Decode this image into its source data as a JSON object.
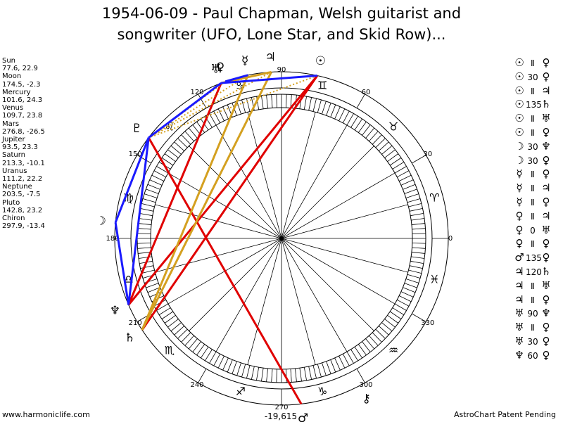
{
  "title": {
    "line1": "1954-06-09 - Paul Chapman, Welsh guitarist and",
    "line2": "songwriter (UFO, Lone Star, and Skid Row)..."
  },
  "planets": [
    {
      "name": "Sun",
      "coords": "77.6, 22.9",
      "longitude": 77.6,
      "glyph": "☉"
    },
    {
      "name": "Moon",
      "coords": "174.5, -2.3",
      "longitude": 174.5,
      "glyph": "☽"
    },
    {
      "name": "Mercury",
      "coords": "101.6, 24.3",
      "longitude": 101.6,
      "glyph": "☿"
    },
    {
      "name": "Venus",
      "coords": "109.7, 23.8",
      "longitude": 109.7,
      "glyph": "♀"
    },
    {
      "name": "Mars",
      "coords": "276.8, -26.5",
      "longitude": 276.8,
      "glyph": "♂"
    },
    {
      "name": "Jupiter",
      "coords": "93.5, 23.3",
      "longitude": 93.5,
      "glyph": "♃"
    },
    {
      "name": "Saturn",
      "coords": "213.3, -10.1",
      "longitude": 213.3,
      "glyph": "♄"
    },
    {
      "name": "Uranus",
      "coords": "111.2, 22.2",
      "longitude": 111.2,
      "glyph": "♅"
    },
    {
      "name": "Neptune",
      "coords": "203.5, -7.5",
      "longitude": 203.5,
      "glyph": "♆"
    },
    {
      "name": "Pluto",
      "coords": "142.8, 23.2",
      "longitude": 142.8,
      "glyph": "♇"
    },
    {
      "name": "Chiron",
      "coords": "297.9, -13.4",
      "longitude": 297.9,
      "glyph": "⚷"
    }
  ],
  "zodiac_signs": [
    {
      "glyph": "♈"
    },
    {
      "glyph": "♉"
    },
    {
      "glyph": "♊"
    },
    {
      "glyph": "♋"
    },
    {
      "glyph": "♌"
    },
    {
      "glyph": "♍"
    },
    {
      "glyph": "♎"
    },
    {
      "glyph": "♏"
    },
    {
      "glyph": "♐"
    },
    {
      "glyph": "♑"
    },
    {
      "glyph": "♒"
    },
    {
      "glyph": "♓"
    }
  ],
  "degree_labels": [
    {
      "deg": 0,
      "text": "0"
    },
    {
      "deg": 30,
      "text": "30"
    },
    {
      "deg": 60,
      "text": "60"
    },
    {
      "deg": 90,
      "text": "90"
    },
    {
      "deg": 120,
      "text": "120"
    },
    {
      "deg": 150,
      "text": "150"
    },
    {
      "deg": 180,
      "text": "180"
    },
    {
      "deg": 210,
      "text": "210"
    },
    {
      "deg": 240,
      "text": "240"
    },
    {
      "deg": 270,
      "text": "270"
    },
    {
      "deg": 300,
      "text": "300"
    },
    {
      "deg": 330,
      "text": "330"
    }
  ],
  "aspect_lines": [
    {
      "from": 77.6,
      "to": 213.3,
      "color": "#e00000",
      "style": "solid"
    },
    {
      "from": 77.6,
      "to": 203.5,
      "color": "#e00000",
      "style": "solid"
    },
    {
      "from": 142.8,
      "to": 276.8,
      "color": "#e00000",
      "style": "solid"
    },
    {
      "from": 111.2,
      "to": 203.5,
      "color": "#e00000",
      "style": "solid"
    },
    {
      "from": 101.6,
      "to": 213.3,
      "color": "#d4a020",
      "style": "solid"
    },
    {
      "from": 93.5,
      "to": 213.3,
      "color": "#d4a020",
      "style": "solid"
    },
    {
      "from": 93.5,
      "to": 111.2,
      "color": "#d4a020",
      "style": "solid"
    },
    {
      "from": 111.2,
      "to": 142.8,
      "color": "#d4a020",
      "style": "dotted"
    },
    {
      "from": 93.5,
      "to": 142.8,
      "color": "#d4a020",
      "style": "dotted"
    },
    {
      "from": 101.6,
      "to": 142.8,
      "color": "#d4a020",
      "style": "dotted"
    },
    {
      "from": 109.7,
      "to": 142.8,
      "color": "#d4a020",
      "style": "dotted"
    },
    {
      "from": 77.6,
      "to": 111.2,
      "color": "#d4a020",
      "style": "dotted"
    },
    {
      "from": 77.6,
      "to": 142.8,
      "color": "#d4a020",
      "style": "dotted"
    },
    {
      "from": 111.2,
      "to": 142.8,
      "color": "#1a1aff",
      "style": "solid"
    },
    {
      "from": 142.8,
      "to": 174.5,
      "color": "#1a1aff",
      "style": "solid"
    },
    {
      "from": 174.5,
      "to": 203.5,
      "color": "#1a1aff",
      "style": "solid"
    },
    {
      "from": 142.8,
      "to": 203.5,
      "color": "#1a1aff",
      "style": "solid"
    },
    {
      "from": 77.6,
      "to": 111.2,
      "color": "#1a1aff",
      "style": "solid"
    },
    {
      "from": 101.6,
      "to": 109.7,
      "color": "#1a1aff",
      "style": "solid"
    }
  ],
  "aspects": [
    {
      "p1": "☉",
      "sym": "Ⅱ",
      "p2": "♀"
    },
    {
      "p1": "☉",
      "sym": "30",
      "p2": "♀"
    },
    {
      "p1": "☉",
      "sym": "Ⅱ",
      "p2": "♃"
    },
    {
      "p1": "☉",
      "sym": "135",
      "p2": "♄"
    },
    {
      "p1": "☉",
      "sym": "Ⅱ",
      "p2": "♅"
    },
    {
      "p1": "☉",
      "sym": "Ⅱ",
      "p2": "♀"
    },
    {
      "p1": "☽",
      "sym": "30",
      "p2": "♆"
    },
    {
      "p1": "☽",
      "sym": "30",
      "p2": "♀"
    },
    {
      "p1": "☿",
      "sym": "Ⅱ",
      "p2": "♀"
    },
    {
      "p1": "☿",
      "sym": "Ⅱ",
      "p2": "♃"
    },
    {
      "p1": "☿",
      "sym": "Ⅱ",
      "p2": "♀"
    },
    {
      "p1": "♀",
      "sym": "Ⅱ",
      "p2": "♃"
    },
    {
      "p1": "♀",
      "sym": "0",
      "p2": "♅"
    },
    {
      "p1": "♀",
      "sym": "Ⅱ",
      "p2": "♀"
    },
    {
      "p1": "♂",
      "sym": "135",
      "p2": "♀"
    },
    {
      "p1": "♃",
      "sym": "120",
      "p2": "♄"
    },
    {
      "p1": "♃",
      "sym": "Ⅱ",
      "p2": "♅"
    },
    {
      "p1": "♃",
      "sym": "Ⅱ",
      "p2": "♀"
    },
    {
      "p1": "♅",
      "sym": "90",
      "p2": "♆"
    },
    {
      "p1": "♅",
      "sym": "Ⅱ",
      "p2": "♀"
    },
    {
      "p1": "♅",
      "sym": "30",
      "p2": "♀"
    },
    {
      "p1": "♆",
      "sym": "60",
      "p2": "♀"
    }
  ],
  "bottom_value": "-19,615",
  "footer": {
    "left": "www.harmoniclife.com",
    "right": "AstroChart Patent Pending"
  }
}
